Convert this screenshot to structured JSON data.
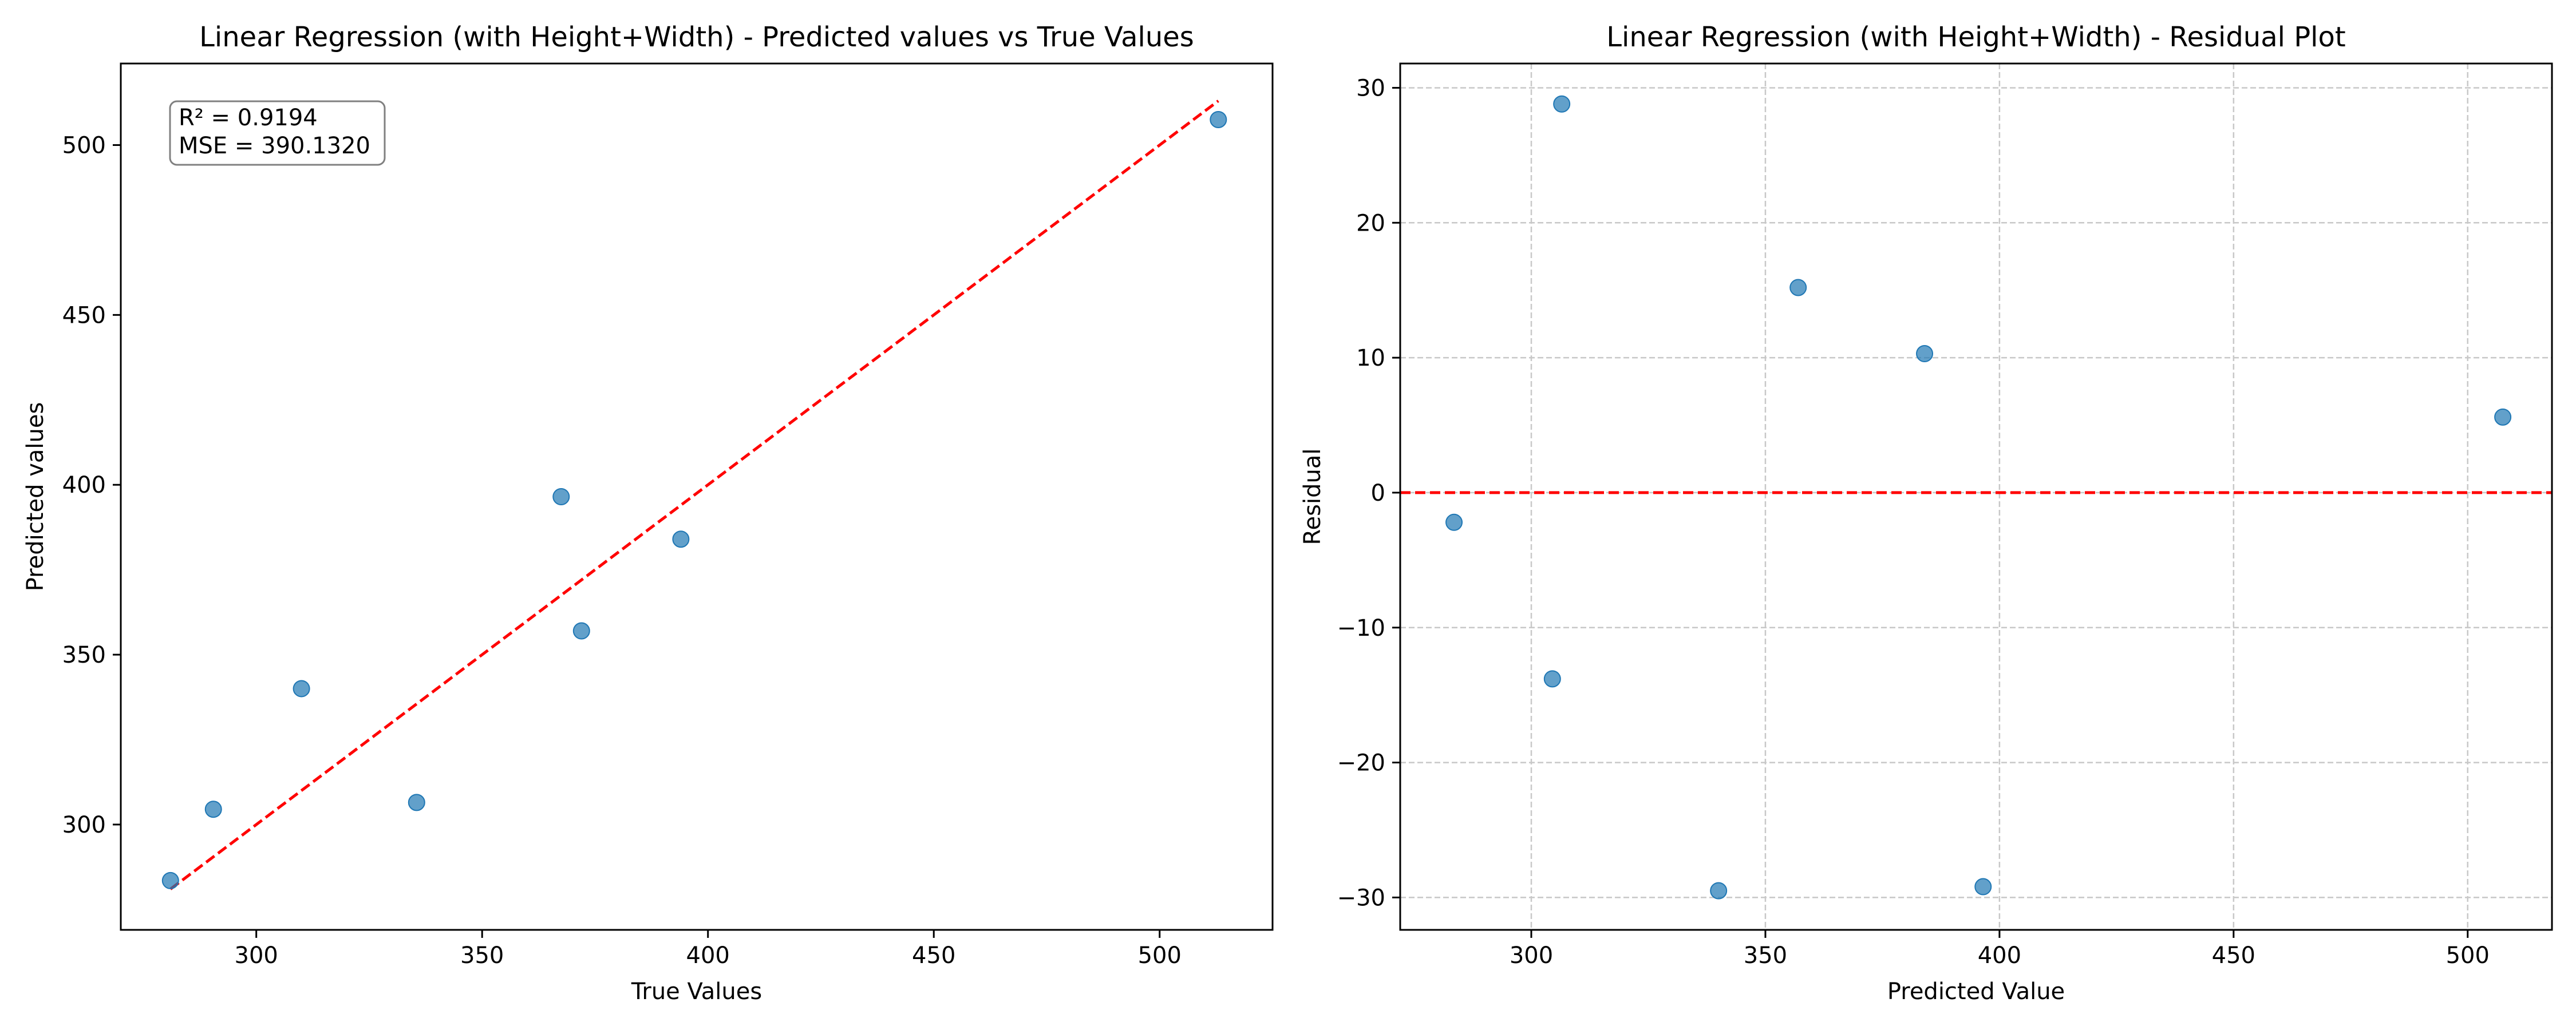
{
  "colors": {
    "point": "#1f77b4",
    "reference_line": "#ff0000",
    "grid": "#c8c8c8",
    "axes": "#000000",
    "annotation_border": "#808080"
  },
  "chart_data": [
    {
      "type": "scatter",
      "title": "Linear Regression (with Height+Width) - Predicted values vs True Values",
      "xlabel": "True Values",
      "ylabel": "Predicted values",
      "xlim": [
        270,
        525
      ],
      "ylim": [
        269,
        524
      ],
      "xticks": [
        300,
        350,
        400,
        450,
        500
      ],
      "yticks": [
        300,
        350,
        400,
        450,
        500
      ],
      "grid": false,
      "annotation": {
        "lines": [
          "R² = 0.9194",
          "MSE = 390.1320"
        ],
        "placement": "top-left"
      },
      "reference_line": {
        "style": "dashed",
        "color": "red",
        "from": [
          281,
          281
        ],
        "to": [
          513,
          513
        ]
      },
      "points": [
        {
          "x": 281,
          "y": 283.5
        },
        {
          "x": 290.5,
          "y": 304.5
        },
        {
          "x": 310,
          "y": 340
        },
        {
          "x": 335.5,
          "y": 306.5
        },
        {
          "x": 367.5,
          "y": 396.5
        },
        {
          "x": 372,
          "y": 357
        },
        {
          "x": 394,
          "y": 384
        },
        {
          "x": 513,
          "y": 507.5
        }
      ]
    },
    {
      "type": "scatter",
      "title": "Linear Regression (with Height+Width) - Residual Plot",
      "xlabel": "Predicted Value",
      "ylabel": "Residual",
      "xlim": [
        272,
        518
      ],
      "ylim": [
        -32.4,
        31.8
      ],
      "xticks": [
        300,
        350,
        400,
        450,
        500
      ],
      "yticks": [
        -30,
        -20,
        -10,
        0,
        10,
        20,
        30
      ],
      "ytick_labels": [
        "−30",
        "−20",
        "−10",
        "0",
        "10",
        "20",
        "30"
      ],
      "grid": true,
      "reference_line": {
        "style": "dashed",
        "color": "red",
        "y": 0
      },
      "points": [
        {
          "x": 283.5,
          "y": -2.2
        },
        {
          "x": 304.5,
          "y": -13.8
        },
        {
          "x": 306.5,
          "y": 28.8
        },
        {
          "x": 340,
          "y": -29.5
        },
        {
          "x": 357,
          "y": 15.2
        },
        {
          "x": 384,
          "y": 10.3
        },
        {
          "x": 396.5,
          "y": -29.2
        },
        {
          "x": 507.5,
          "y": 5.6
        }
      ]
    }
  ]
}
